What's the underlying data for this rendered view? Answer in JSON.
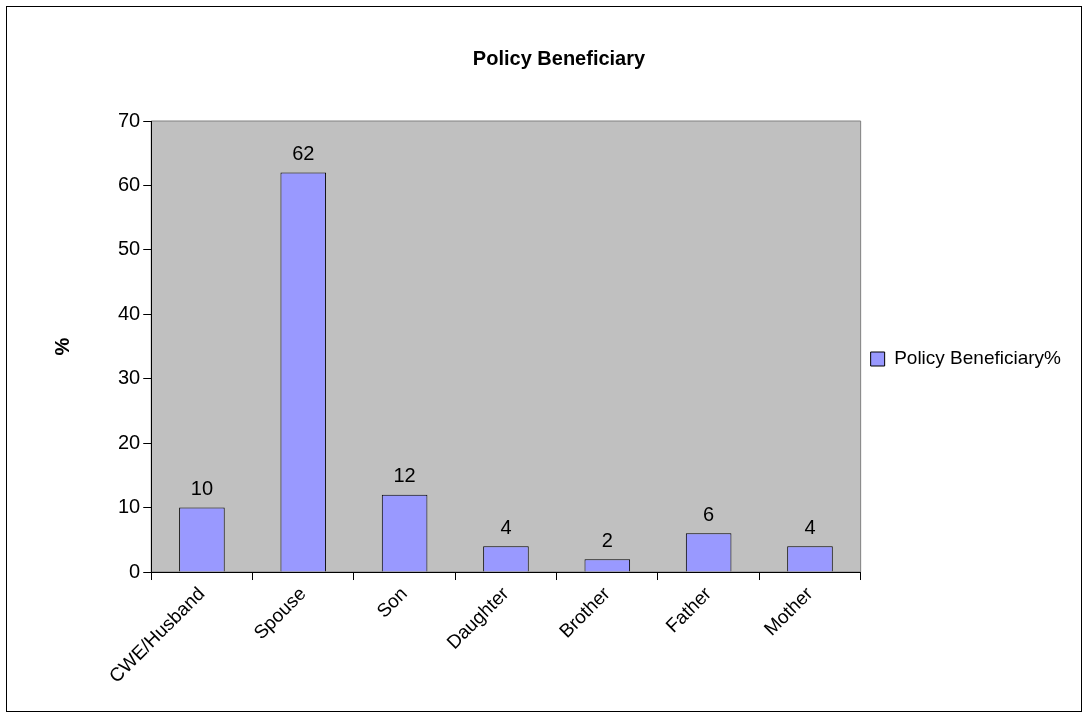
{
  "chart_data": {
    "type": "bar",
    "title": "Policy Beneficiary",
    "ylabel": "%",
    "categories": [
      "CWE/Husband",
      "Spouse",
      "Son",
      "Daughter",
      "Brother",
      "Father",
      "Mother"
    ],
    "series": [
      {
        "name": "Policy Beneficiary%",
        "color": "#9999ff",
        "values": [
          10,
          62,
          12,
          4,
          2,
          6,
          4
        ]
      }
    ],
    "ylim": [
      0,
      70
    ],
    "yticks": [
      0,
      10,
      20,
      30,
      40,
      50,
      60,
      70
    ],
    "grid": false,
    "legend": "right",
    "data_labels": true
  }
}
